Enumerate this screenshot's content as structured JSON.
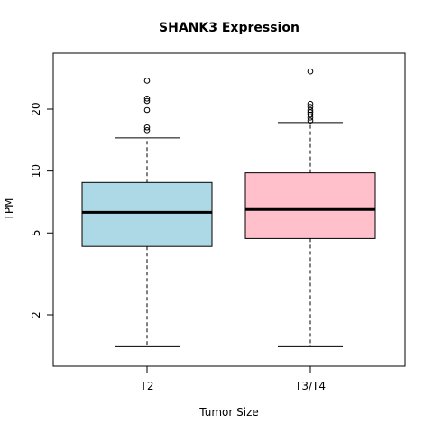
{
  "chart_data": {
    "type": "box",
    "title": "SHANK3 Expression",
    "xlabel": "Tumor Size",
    "ylabel": "TPM",
    "y_scale": "log",
    "yticks": [
      2,
      5,
      10,
      20
    ],
    "ylim": [
      1.2,
      32
    ],
    "categories": [
      "T2",
      "T3/T4"
    ],
    "series": [
      {
        "color": "#add8e6",
        "min": 1.4,
        "q1": 4.3,
        "median": 6.3,
        "q3": 8.8,
        "max": 14.5,
        "outliers": [
          15.8,
          16.3,
          19.8,
          21.9,
          22.5,
          27.5
        ]
      },
      {
        "color": "#ffc0cb",
        "min": 1.4,
        "q1": 4.7,
        "median": 6.5,
        "q3": 9.8,
        "max": 17.2,
        "outliers": [
          17.6,
          18.2,
          18.8,
          19.3,
          19.8,
          20.5,
          21.2,
          30.5
        ]
      }
    ]
  }
}
